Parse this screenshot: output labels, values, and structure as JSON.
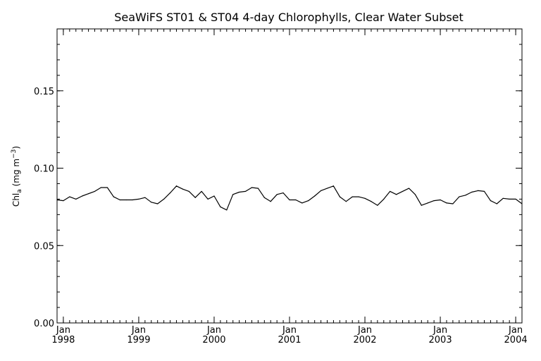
{
  "chart_data": {
    "type": "line",
    "title": "SeaWiFS ST01 & ST04 4-day Chlorophylls, Clear Water Subset",
    "ylabel": {
      "main": "Chl",
      "subscript": "a",
      "units_open": " (mg m",
      "superscript": "−3",
      "units_close": ")"
    },
    "xlabel": "",
    "xlim": [
      "1997-12",
      "2004-02"
    ],
    "ylim": [
      0.0,
      0.19
    ],
    "yticks": [
      {
        "value": 0.0,
        "label": "0.00"
      },
      {
        "value": 0.05,
        "label": "0.05"
      },
      {
        "value": 0.1,
        "label": "0.10"
      },
      {
        "value": 0.15,
        "label": "0.15"
      }
    ],
    "xticks": [
      {
        "date": "1998-01",
        "month": "Jan",
        "year": "1998"
      },
      {
        "date": "1999-01",
        "month": "Jan",
        "year": "1999"
      },
      {
        "date": "2000-01",
        "month": "Jan",
        "year": "2000"
      },
      {
        "date": "2001-01",
        "month": "Jan",
        "year": "2001"
      },
      {
        "date": "2002-01",
        "month": "Jan",
        "year": "2002"
      },
      {
        "date": "2003-01",
        "month": "Jan",
        "year": "2003"
      },
      {
        "date": "2004-01",
        "month": "Jan",
        "year": "2004"
      }
    ],
    "grid": false,
    "series": [
      {
        "color": "#000000",
        "points": [
          [
            "1997-12",
            0.0795
          ],
          [
            "1998-01",
            0.079
          ],
          [
            "1998-02",
            0.0815
          ],
          [
            "1998-03",
            0.08
          ],
          [
            "1998-04",
            0.082
          ],
          [
            "1998-05",
            0.0835
          ],
          [
            "1998-06",
            0.085
          ],
          [
            "1998-07",
            0.0875
          ],
          [
            "1998-08",
            0.0875
          ],
          [
            "1998-09",
            0.0815
          ],
          [
            "1998-10",
            0.0795
          ],
          [
            "1998-11",
            0.0795
          ],
          [
            "1998-12",
            0.0795
          ],
          [
            "1999-01",
            0.08
          ],
          [
            "1999-02",
            0.081
          ],
          [
            "1999-03",
            0.078
          ],
          [
            "1999-04",
            0.077
          ],
          [
            "1999-05",
            0.08
          ],
          [
            "1999-06",
            0.084
          ],
          [
            "1999-07",
            0.0885
          ],
          [
            "1999-08",
            0.0865
          ],
          [
            "1999-09",
            0.085
          ],
          [
            "1999-10",
            0.081
          ],
          [
            "1999-11",
            0.085
          ],
          [
            "1999-12",
            0.08
          ],
          [
            "2000-01",
            0.082
          ],
          [
            "2000-02",
            0.075
          ],
          [
            "2000-03",
            0.073
          ],
          [
            "2000-04",
            0.083
          ],
          [
            "2000-05",
            0.0845
          ],
          [
            "2000-06",
            0.085
          ],
          [
            "2000-07",
            0.0875
          ],
          [
            "2000-08",
            0.087
          ],
          [
            "2000-09",
            0.081
          ],
          [
            "2000-10",
            0.0785
          ],
          [
            "2000-11",
            0.083
          ],
          [
            "2000-12",
            0.084
          ],
          [
            "2001-01",
            0.0795
          ],
          [
            "2001-02",
            0.0795
          ],
          [
            "2001-03",
            0.0775
          ],
          [
            "2001-04",
            0.079
          ],
          [
            "2001-05",
            0.082
          ],
          [
            "2001-06",
            0.0855
          ],
          [
            "2001-07",
            0.087
          ],
          [
            "2001-08",
            0.0885
          ],
          [
            "2001-09",
            0.0815
          ],
          [
            "2001-10",
            0.0785
          ],
          [
            "2001-11",
            0.0815
          ],
          [
            "2001-12",
            0.0815
          ],
          [
            "2002-01",
            0.0805
          ],
          [
            "2002-02",
            0.0785
          ],
          [
            "2002-03",
            0.076
          ],
          [
            "2002-04",
            0.08
          ],
          [
            "2002-05",
            0.085
          ],
          [
            "2002-06",
            0.083
          ],
          [
            "2002-07",
            0.085
          ],
          [
            "2002-08",
            0.087
          ],
          [
            "2002-09",
            0.083
          ],
          [
            "2002-10",
            0.076
          ],
          [
            "2002-11",
            0.0775
          ],
          [
            "2002-12",
            0.079
          ],
          [
            "2003-01",
            0.0795
          ],
          [
            "2003-02",
            0.0775
          ],
          [
            "2003-03",
            0.077
          ],
          [
            "2003-04",
            0.0815
          ],
          [
            "2003-05",
            0.0825
          ],
          [
            "2003-06",
            0.0845
          ],
          [
            "2003-07",
            0.0855
          ],
          [
            "2003-08",
            0.085
          ],
          [
            "2003-09",
            0.079
          ],
          [
            "2003-10",
            0.077
          ],
          [
            "2003-11",
            0.0805
          ],
          [
            "2003-12",
            0.08
          ],
          [
            "2004-01",
            0.08
          ],
          [
            "2004-02",
            0.077
          ]
        ]
      }
    ]
  }
}
